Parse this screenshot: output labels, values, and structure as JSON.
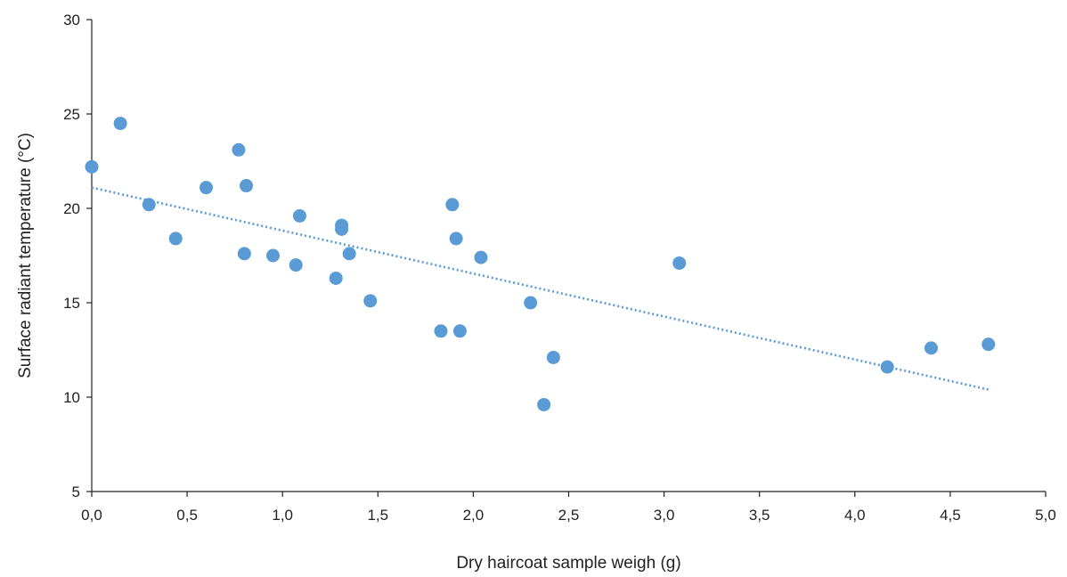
{
  "chart_data": {
    "type": "scatter",
    "title": "",
    "xlabel": "Dry haircoat sample weigh (g)",
    "ylabel": "Surface radiant temperature (°C)",
    "xlim": [
      0,
      5
    ],
    "ylim": [
      5,
      30
    ],
    "x_ticks": [
      0,
      0.5,
      1,
      1.5,
      2,
      2.5,
      3,
      3.5,
      4,
      4.5,
      5
    ],
    "x_tick_labels": [
      "0,0",
      "0,5",
      "1,0",
      "1,5",
      "2,0",
      "2,5",
      "3,0",
      "3,5",
      "4,0",
      "4,5",
      "5,0"
    ],
    "y_ticks": [
      5,
      10,
      15,
      20,
      25,
      30
    ],
    "y_tick_labels": [
      "5",
      "10",
      "15",
      "20",
      "25",
      "30"
    ],
    "grid": false,
    "legend": "none",
    "point_color": "#5B9BD5",
    "trendline_color": "#5B9BD5",
    "series": [
      {
        "points": [
          [
            0.0,
            22.2
          ],
          [
            0.15,
            24.5
          ],
          [
            0.3,
            20.2
          ],
          [
            0.44,
            18.4
          ],
          [
            0.6,
            21.1
          ],
          [
            0.77,
            23.1
          ],
          [
            0.8,
            17.6
          ],
          [
            0.81,
            21.2
          ],
          [
            0.95,
            17.5
          ],
          [
            1.07,
            17.0
          ],
          [
            1.09,
            19.6
          ],
          [
            1.28,
            16.3
          ],
          [
            1.31,
            19.1
          ],
          [
            1.31,
            18.9
          ],
          [
            1.35,
            17.6
          ],
          [
            1.46,
            15.1
          ],
          [
            1.83,
            13.5
          ],
          [
            1.89,
            20.2
          ],
          [
            1.91,
            18.4
          ],
          [
            1.93,
            13.5
          ],
          [
            2.04,
            17.4
          ],
          [
            2.3,
            15.0
          ],
          [
            2.37,
            9.6
          ],
          [
            2.42,
            12.1
          ],
          [
            3.08,
            17.1
          ],
          [
            4.17,
            11.6
          ],
          [
            4.4,
            12.6
          ],
          [
            4.7,
            12.8
          ]
        ]
      }
    ],
    "trendline": {
      "type": "linear",
      "style": "dotted",
      "x": [
        0,
        4.7
      ],
      "y": [
        21.1,
        10.4
      ]
    }
  }
}
